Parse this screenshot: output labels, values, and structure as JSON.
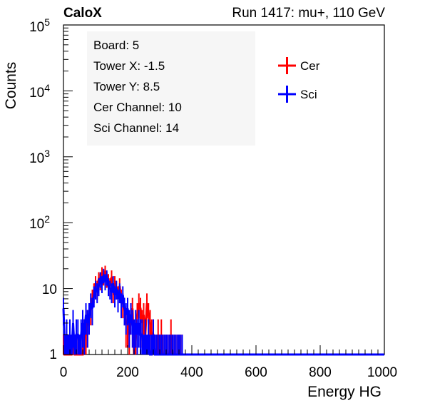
{
  "header": {
    "left": "CaloX",
    "right": "Run 1417: mu+, 110 GeV"
  },
  "info_box": {
    "lines": [
      "Board: 5",
      "Tower X: -1.5",
      "Tower Y: 8.5",
      "Cer Channel: 10",
      "Sci Channel: 14"
    ]
  },
  "chart_data": {
    "type": "line",
    "xlabel": "Energy HG",
    "ylabel": "Counts",
    "xlim": [
      0,
      1000
    ],
    "ylim": [
      1,
      100000
    ],
    "y_scale": "log",
    "x_ticks": [
      0,
      200,
      400,
      600,
      800,
      1000
    ],
    "y_tick_labels": [
      "1",
      "10",
      "10^2",
      "10^3",
      "10^4",
      "10^5"
    ],
    "legend": {
      "placement": "top-right",
      "entries": [
        "Cer",
        "Sci"
      ]
    },
    "grid": false,
    "series": [
      {
        "name": "Cer",
        "color": "#ff0000",
        "x": [
          0,
          5,
          10,
          15,
          20,
          25,
          30,
          35,
          40,
          45,
          50,
          55,
          60,
          65,
          70,
          75,
          80,
          85,
          90,
          95,
          100,
          105,
          110,
          115,
          120,
          125,
          130,
          135,
          140,
          145,
          150,
          155,
          160,
          165,
          170,
          175,
          180,
          185,
          190,
          195,
          200,
          205,
          210,
          215,
          220,
          225,
          230,
          235,
          240,
          245,
          250,
          255,
          260,
          265,
          270,
          275,
          280,
          285,
          290,
          295,
          300,
          305,
          310,
          315,
          320,
          325,
          330,
          335,
          340,
          345,
          350,
          355,
          360,
          365,
          370
        ],
        "values": [
          1,
          1,
          1,
          1,
          1,
          1,
          2,
          1,
          1,
          1,
          1,
          1,
          1,
          2,
          2,
          3,
          4,
          5,
          7,
          9,
          12,
          10,
          14,
          13,
          17,
          15,
          18,
          14,
          13,
          11,
          15,
          9,
          12,
          10,
          8,
          11,
          7,
          6,
          5,
          3,
          3,
          2,
          4,
          5,
          1,
          2,
          4,
          6,
          5,
          3,
          4,
          2,
          6,
          4,
          3,
          2,
          2,
          1,
          1,
          2,
          1,
          2,
          1,
          1,
          1,
          1,
          1,
          2,
          1,
          1,
          1,
          1,
          1,
          1,
          1
        ]
      },
      {
        "name": "Sci",
        "color": "#0000ff",
        "x": [
          0,
          5,
          10,
          15,
          20,
          25,
          30,
          35,
          40,
          45,
          50,
          55,
          60,
          65,
          70,
          75,
          80,
          85,
          90,
          95,
          100,
          105,
          110,
          115,
          120,
          125,
          130,
          135,
          140,
          145,
          150,
          155,
          160,
          165,
          170,
          175,
          180,
          185,
          190,
          195,
          200,
          205,
          210,
          215,
          220,
          225,
          230,
          235,
          240,
          245,
          250,
          255,
          260,
          265,
          270,
          275,
          280,
          285,
          290,
          295,
          300,
          305,
          310,
          315,
          320,
          325,
          330,
          335,
          340,
          345,
          350,
          355,
          360,
          365,
          370
        ],
        "values": [
          5,
          1,
          2,
          1,
          2,
          1,
          3,
          1,
          2,
          2,
          1,
          2,
          3,
          2,
          4,
          3,
          4,
          6,
          5,
          8,
          10,
          9,
          11,
          14,
          12,
          16,
          13,
          15,
          11,
          10,
          9,
          12,
          8,
          10,
          7,
          9,
          6,
          8,
          5,
          4,
          5,
          3,
          4,
          3,
          2,
          3,
          2,
          3,
          2,
          2,
          1,
          2,
          1,
          2,
          1,
          1,
          2,
          1,
          1,
          1,
          1,
          1,
          1,
          1,
          1,
          1,
          1,
          1,
          1,
          1,
          1,
          1,
          1,
          1,
          1
        ]
      }
    ]
  }
}
